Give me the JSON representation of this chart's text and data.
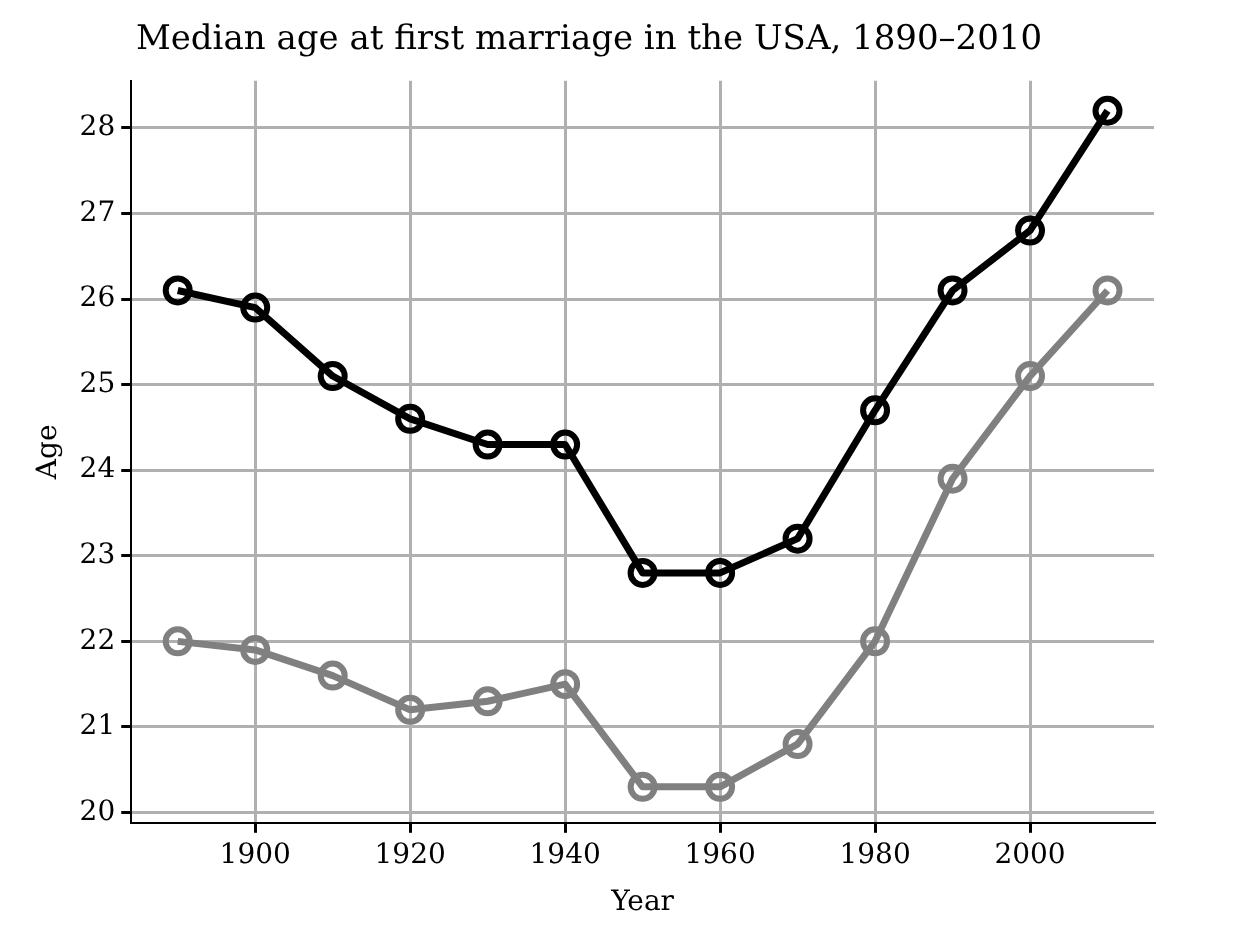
{
  "chart_data": {
    "type": "line",
    "title": "Median age at first marriage in the USA, 1890–2010",
    "xlabel": "Year",
    "ylabel": "Age",
    "x": [
      1890,
      1900,
      1910,
      1920,
      1930,
      1940,
      1950,
      1960,
      1970,
      1980,
      1990,
      2000,
      2010
    ],
    "series": [
      {
        "color": "#000000",
        "values": [
          26.1,
          25.9,
          25.1,
          24.6,
          24.3,
          24.3,
          22.8,
          22.8,
          23.2,
          24.7,
          26.1,
          26.8,
          28.2
        ]
      },
      {
        "color": "#808080",
        "values": [
          22.0,
          21.9,
          21.6,
          21.2,
          21.3,
          21.5,
          20.3,
          20.3,
          20.8,
          22.0,
          23.9,
          25.1,
          26.1
        ]
      }
    ],
    "xlim": [
      1884,
      2016
    ],
    "xticks": [
      1900,
      1920,
      1940,
      1960,
      1980,
      2000
    ],
    "ylim": [
      19.88,
      28.55
    ],
    "yticks": [
      20,
      21,
      22,
      23,
      24,
      25,
      26,
      27,
      28
    ],
    "grid": true,
    "legend": false,
    "marker": "circle",
    "line_style": "solid"
  }
}
